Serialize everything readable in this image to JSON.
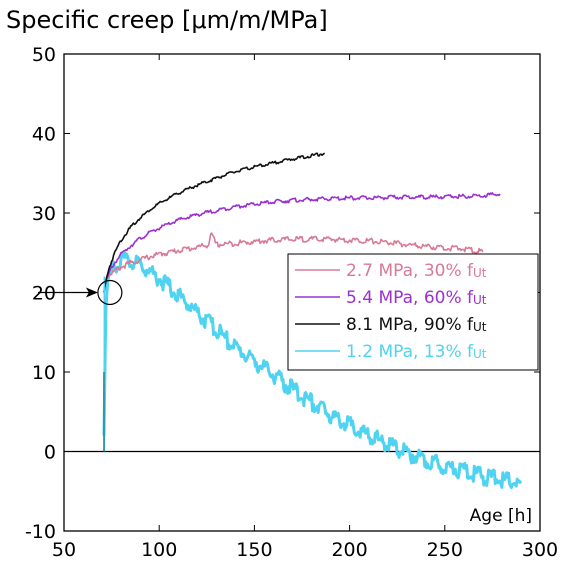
{
  "chart_data": {
    "type": "line",
    "title": "Specific creep [μm/m/MPa]",
    "xlabel": "Age [h]",
    "ylabel": "",
    "xlim": [
      50,
      300
    ],
    "ylim": [
      -10,
      50
    ],
    "xticks": [
      "50",
      "100",
      "150",
      "200",
      "250",
      "300"
    ],
    "yticks": [
      "-10",
      "0",
      "10",
      "20",
      "30",
      "40",
      "50"
    ],
    "grid": false,
    "legend_position": "middle-right",
    "series": [
      {
        "name": "2.7 MPa, 30% f",
        "name_sub": "Ut",
        "color": "#d87a95",
        "x": [
          71,
          72,
          74,
          76,
          78,
          80,
          85,
          90,
          95,
          100,
          110,
          120,
          126,
          127,
          130,
          140,
          150,
          160,
          170,
          180,
          190,
          200,
          210,
          220,
          230,
          240,
          250,
          260,
          265,
          270
        ],
        "y": [
          20,
          21.5,
          22.3,
          22.6,
          22.9,
          23.2,
          23.7,
          24.1,
          24.5,
          24.8,
          25.3,
          25.7,
          26.0,
          27.5,
          26.0,
          26.2,
          26.4,
          26.6,
          26.7,
          26.7,
          26.7,
          26.6,
          26.5,
          26.3,
          26.0,
          25.8,
          25.6,
          25.5,
          25.3,
          25.1
        ]
      },
      {
        "name": "5.4 MPa, 60% f",
        "name_sub": "Ut",
        "color": "#9b30d0",
        "x": [
          71,
          72,
          74,
          76,
          78,
          80,
          85,
          90,
          95,
          100,
          110,
          120,
          130,
          140,
          150,
          160,
          170,
          180,
          190,
          200,
          210,
          220,
          230,
          240,
          250,
          260,
          270,
          275,
          279
        ],
        "y": [
          20,
          21.5,
          22.7,
          23.5,
          24.2,
          24.8,
          25.9,
          26.8,
          27.5,
          28.1,
          29.1,
          29.8,
          30.3,
          30.8,
          31.1,
          31.4,
          31.6,
          31.7,
          31.8,
          31.9,
          31.9,
          31.95,
          32.0,
          32.0,
          32.05,
          32.1,
          32.2,
          32.3,
          32.4
        ]
      },
      {
        "name": "8.1 MPa, 90% f",
        "name_sub": "Ut",
        "color": "#111111",
        "x": [
          71,
          72,
          74,
          76,
          78,
          80,
          85,
          90,
          95,
          100,
          110,
          120,
          130,
          140,
          150,
          160,
          170,
          180,
          187
        ],
        "y": [
          20,
          21.5,
          23.3,
          24.6,
          25.7,
          26.6,
          28.2,
          29.4,
          30.4,
          31.2,
          32.5,
          33.5,
          34.4,
          35.2,
          35.8,
          36.3,
          36.8,
          37.2,
          37.5
        ]
      },
      {
        "name": "1.2 MPa, 13% f",
        "name_sub": "Ut",
        "color": "#4fd3f0",
        "x": [
          71,
          72,
          73,
          74,
          76,
          78,
          80,
          85,
          90,
          95,
          100,
          110,
          120,
          130,
          140,
          150,
          160,
          170,
          180,
          190,
          200,
          210,
          220,
          230,
          240,
          250,
          260,
          270,
          280,
          290
        ],
        "y": [
          2,
          18,
          21.5,
          22.5,
          23.2,
          23.8,
          24.0,
          23.9,
          23.5,
          22.7,
          21.8,
          19.7,
          17.5,
          15.3,
          13.1,
          11.4,
          9.6,
          7.8,
          6.2,
          4.6,
          3.3,
          2.0,
          0.9,
          -0.2,
          -1.0,
          -1.8,
          -2.5,
          -3.1,
          -3.6,
          -4.0
        ]
      }
    ],
    "vertical_markers": [
      {
        "color": "#4fd3f0",
        "x": 71.2,
        "y0": 0,
        "y1": 22
      },
      {
        "color": "#2a8a9a",
        "x": 71.0,
        "y0": 0,
        "y1": 10
      }
    ],
    "annotation": {
      "type": "circle-arrow",
      "target_x": 72,
      "target_y": 20,
      "arrow_from_x": 50,
      "arrow_from_y": 20
    }
  }
}
